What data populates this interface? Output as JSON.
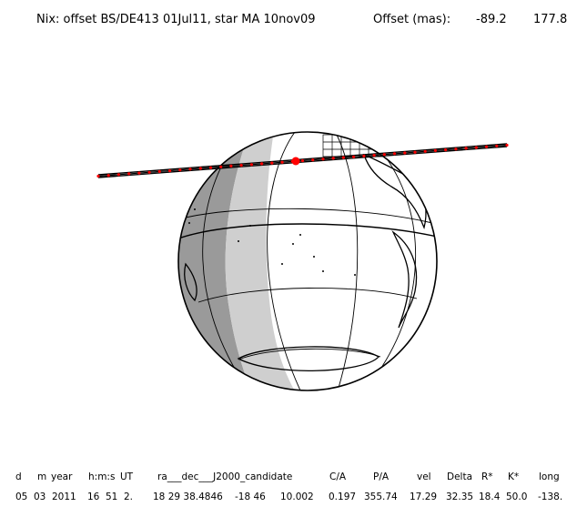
{
  "title": {
    "main": "Nix: offset BS/DE413 01Jul11, star MA 10nov09",
    "offset_label": "Offset (mas):",
    "offset_x": "-89.2",
    "offset_y": "177.8"
  },
  "map": {
    "projection": "orthographic",
    "shadow_colors": {
      "umbra": "#9a9a9a",
      "penumbra": "#cfcfcf"
    },
    "track_color": "#000000",
    "track_point_color": "#ff0000",
    "center_point": "C/A"
  },
  "table": {
    "headers": [
      "d",
      "m",
      "year",
      "h:m:s",
      "UT",
      "ra___dec___J2000_candidate",
      "C/A",
      "P/A",
      "vel",
      "Delta",
      "R*",
      "K*",
      "long"
    ],
    "values": [
      "05",
      "03",
      "2011",
      "16",
      "51",
      "2.",
      "18 29 38.4846",
      "-18 46",
      "10.002",
      "0.197",
      "355.74",
      "17.29",
      "32.35",
      "18.4",
      "50.0",
      "-138."
    ]
  }
}
